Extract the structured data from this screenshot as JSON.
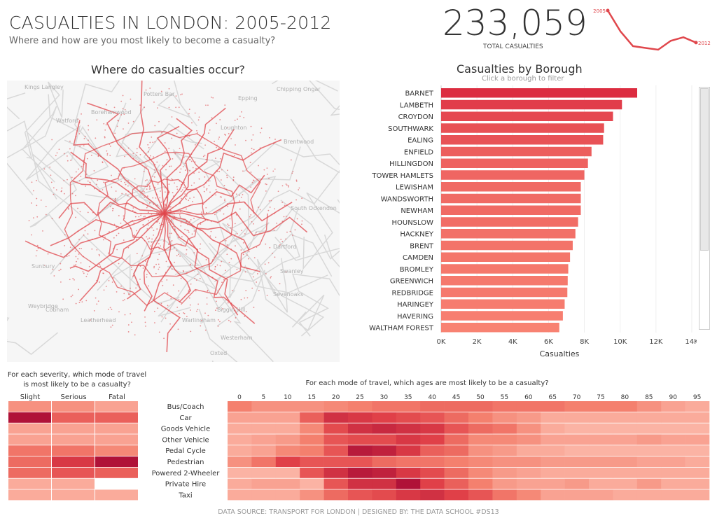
{
  "header": {
    "title": "CASUALTIES IN LONDON: 2005-2012",
    "subtitle": "Where and how are you most likely to become a casualty?"
  },
  "kpi": {
    "total": "233,059",
    "label": "TOTAL CASUALTIES"
  },
  "sparkline": {
    "type": "line",
    "x": [
      2005,
      2006,
      2007,
      2008,
      2009,
      2010,
      2011,
      2012
    ],
    "values": [
      34000,
      30500,
      28000,
      27700,
      27400,
      28900,
      29500,
      28600
    ],
    "start_label": "2005",
    "end_label": "2012",
    "color": "#e0474c"
  },
  "map": {
    "title": "Where do casualties occur?",
    "places": [
      "Kings Langley",
      "Potters Bar",
      "Chipping Ongar",
      "Epping",
      "Borehamwood",
      "Watford",
      "Loughton",
      "Brentwood",
      "South Ockendon",
      "Dartford",
      "Swanley",
      "Sevenoaks",
      "Westerham",
      "Oxted",
      "Leatherhead",
      "Cobham",
      "Weybridge",
      "Sunbury",
      "Warlingham",
      "Biggin Hill"
    ],
    "point_color": "#e0474c"
  },
  "chart_data": [
    {
      "type": "bar",
      "orientation": "horizontal",
      "title": "Casualties by Borough",
      "subtitle": "Click a borough to filter",
      "xlabel": "Casualties",
      "xlim": [
        0,
        14000
      ],
      "ticks": [
        "0K",
        "2K",
        "4K",
        "6K",
        "8K",
        "10K",
        "12K",
        "14K"
      ],
      "grid": true,
      "categories": [
        "BARNET",
        "LAMBETH",
        "CROYDON",
        "SOUTHWARK",
        "EALING",
        "ENFIELD",
        "HILLINGDON",
        "TOWER HAMLETS",
        "LEWISHAM",
        "WANDSWORTH",
        "NEWHAM",
        "HOUNSLOW",
        "HACKNEY",
        "BRENT",
        "CAMDEN",
        "BROMLEY",
        "GREENWICH",
        "REDBRIDGE",
        "HARINGEY",
        "HAVERING",
        "WALTHAM FOREST"
      ],
      "values": [
        10950,
        10100,
        9600,
        9100,
        9050,
        8400,
        8200,
        8000,
        7800,
        7800,
        7800,
        7650,
        7500,
        7350,
        7200,
        7100,
        7070,
        7050,
        6900,
        6800,
        6600
      ]
    },
    {
      "type": "heatmap",
      "title": "For each severity, which mode of travel is most likely to be a casualty?",
      "columns": [
        "Slight",
        "Serious",
        "Fatal"
      ],
      "rows": [
        "Bus/Coach",
        "Car",
        "Goods Vehicle",
        "Other Vehicle",
        "Pedal Cycle",
        "Pedestrian",
        "Powered 2-Wheeler",
        "Private Hire",
        "Taxi"
      ],
      "values": [
        [
          0.3,
          0.3,
          0.2
        ],
        [
          1.0,
          0.55,
          0.55
        ],
        [
          0.2,
          0.2,
          0.2
        ],
        [
          0.2,
          0.2,
          0.2
        ],
        [
          0.45,
          0.45,
          0.35
        ],
        [
          0.5,
          0.75,
          1.0
        ],
        [
          0.5,
          0.6,
          0.55
        ],
        [
          0.15,
          0.15,
          null
        ],
        [
          0.15,
          0.15,
          0.15
        ]
      ]
    },
    {
      "type": "heatmap",
      "title": "For each mode of travel, which ages are most likely to be a casualty?",
      "columns": [
        "0",
        "5",
        "10",
        "15",
        "20",
        "25",
        "30",
        "35",
        "40",
        "45",
        "50",
        "55",
        "60",
        "65",
        "70",
        "75",
        "80",
        "85",
        "90",
        "95"
      ],
      "rows": [
        "Bus/Coach",
        "Car",
        "Goods Vehicle",
        "Other Vehicle",
        "Pedal Cycle",
        "Pedestrian",
        "Powered 2-Wheeler",
        "Private Hire",
        "Taxi"
      ],
      "values": [
        [
          0.4,
          0.3,
          0.3,
          0.3,
          0.35,
          0.4,
          0.45,
          0.45,
          0.5,
          0.5,
          0.5,
          0.45,
          0.45,
          0.45,
          0.4,
          0.4,
          0.4,
          0.3,
          0.2,
          0.15
        ],
        [
          0.2,
          0.2,
          0.2,
          0.55,
          0.8,
          0.75,
          0.7,
          0.65,
          0.6,
          0.5,
          0.4,
          0.3,
          0.25,
          0.15,
          0.15,
          0.15,
          0.15,
          0.15,
          0.15,
          0.15
        ],
        [
          0.15,
          0.15,
          0.15,
          0.35,
          0.65,
          0.8,
          0.85,
          0.8,
          0.75,
          0.6,
          0.5,
          0.45,
          0.3,
          0.15,
          0.1,
          0.1,
          0.1,
          0.1,
          0.1,
          0.1
        ],
        [
          0.15,
          0.2,
          0.25,
          0.4,
          0.6,
          0.65,
          0.65,
          0.75,
          0.7,
          0.5,
          0.35,
          0.35,
          0.3,
          0.2,
          0.2,
          0.2,
          0.2,
          0.25,
          0.2,
          0.2
        ],
        [
          0.15,
          0.2,
          0.35,
          0.4,
          0.6,
          0.95,
          0.9,
          0.75,
          0.55,
          0.5,
          0.3,
          0.25,
          0.15,
          0.15,
          0.1,
          0.1,
          0.1,
          0.1,
          0.1,
          0.1
        ],
        [
          0.3,
          0.45,
          0.7,
          0.6,
          0.6,
          0.6,
          0.5,
          0.45,
          0.45,
          0.4,
          0.35,
          0.3,
          0.3,
          0.25,
          0.25,
          0.25,
          0.25,
          0.2,
          0.2,
          0.15
        ],
        [
          0.1,
          0.1,
          0.1,
          0.6,
          0.8,
          0.95,
          0.9,
          0.75,
          0.65,
          0.5,
          0.35,
          0.25,
          0.2,
          0.15,
          0.15,
          0.15,
          0.15,
          0.15,
          0.15,
          0.15
        ],
        [
          0.15,
          0.2,
          0.2,
          0.1,
          0.6,
          0.8,
          0.8,
          1.0,
          0.7,
          0.55,
          0.4,
          0.25,
          0.2,
          0.2,
          0.25,
          0.15,
          0.15,
          0.25,
          0.15,
          0.15
        ],
        [
          0.15,
          0.15,
          0.15,
          0.3,
          0.5,
          0.6,
          0.65,
          0.75,
          0.8,
          0.7,
          0.6,
          0.45,
          0.35,
          0.2,
          0.2,
          0.2,
          0.15,
          0.15,
          0.15,
          0.15
        ]
      ]
    }
  ],
  "footer": "DATA SOURCE: TRANSPORT FOR LONDON  |  DESIGNED BY: THE DATA SCHOOL #DS13"
}
